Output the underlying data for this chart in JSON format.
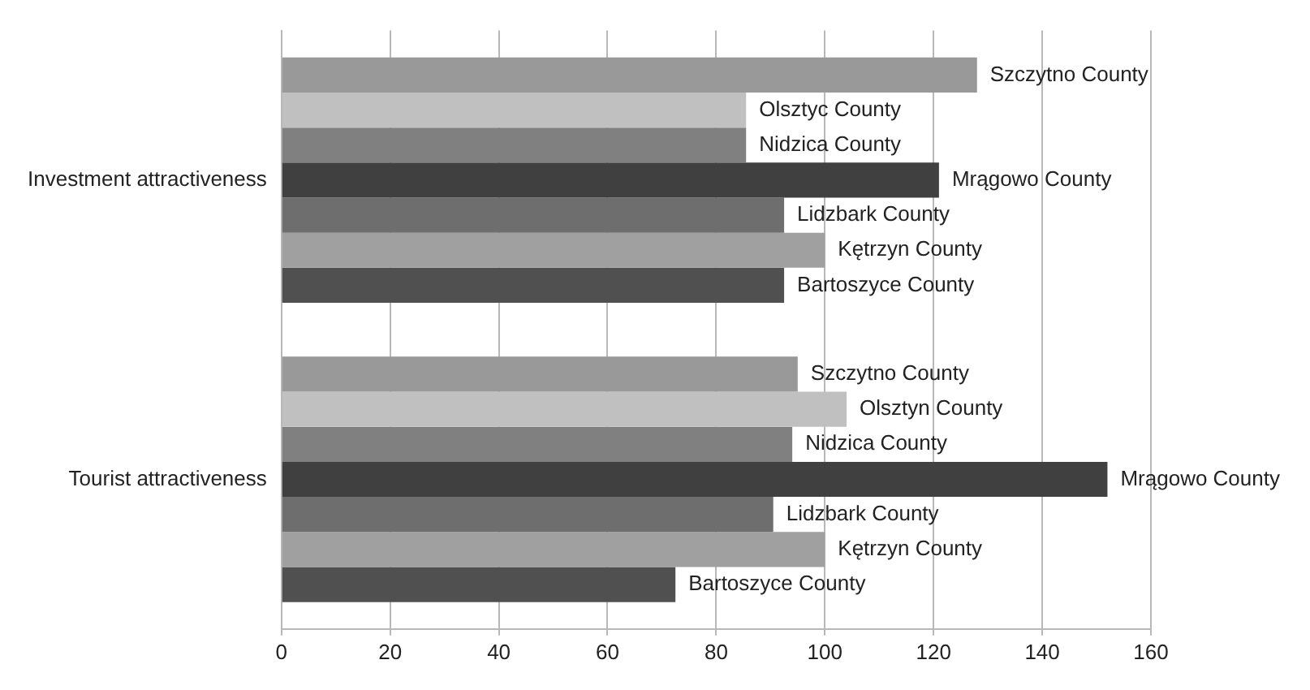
{
  "chart_data": {
    "type": "bar",
    "orientation": "horizontal",
    "categories": [
      "Investment attractiveness",
      "Tourist attractiveness"
    ],
    "series": [
      {
        "color": "#999999",
        "values": [
          128,
          95
        ],
        "value_labels": [
          "Szczytno County",
          "Szczytno County"
        ]
      },
      {
        "color": "#c0c0c0",
        "values": [
          85.5,
          104
        ],
        "value_labels": [
          "Olsztyc County",
          "Olsztyn County"
        ]
      },
      {
        "color": "#808080",
        "values": [
          85.5,
          94
        ],
        "value_labels": [
          "Nidzica County",
          "Nidzica County"
        ]
      },
      {
        "color": "#404040",
        "values": [
          121,
          152
        ],
        "value_labels": [
          "Mrągowo County",
          "Mrągowo County"
        ]
      },
      {
        "color": "#6e6e6e",
        "values": [
          92.5,
          90.5
        ],
        "value_labels": [
          "Lidzbark County",
          "Lidzbark County"
        ]
      },
      {
        "color": "#a0a0a0",
        "values": [
          100,
          100
        ],
        "value_labels": [
          "Kętrzyn County",
          "Kętrzyn County"
        ]
      },
      {
        "color": "#505050",
        "values": [
          92.5,
          72.5
        ],
        "value_labels": [
          "Bartoszyce County",
          "Bartoszyce County"
        ]
      }
    ],
    "xlim": [
      0,
      160
    ],
    "xticks": [
      0,
      20,
      40,
      60,
      80,
      100,
      120,
      140,
      160
    ],
    "grid": "x",
    "legend": false
  }
}
